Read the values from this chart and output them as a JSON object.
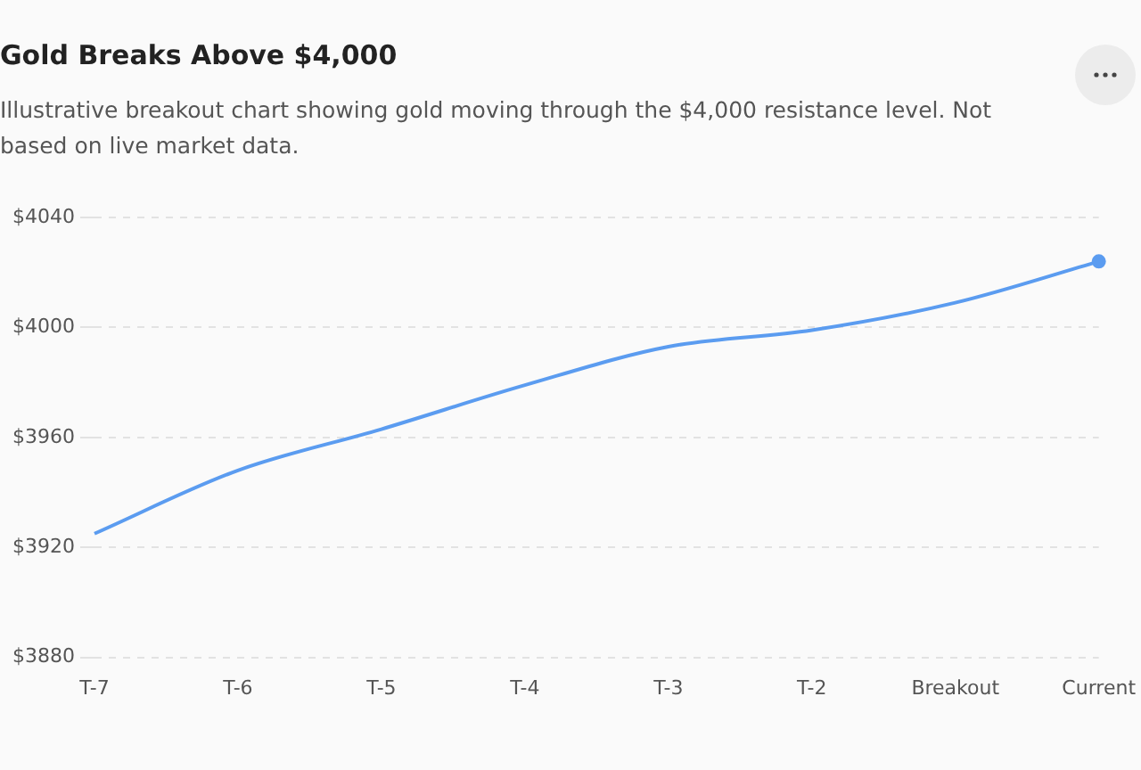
{
  "chart_data": {
    "type": "line",
    "title": "Gold Breaks Above $4,000",
    "subtitle": "Illustrative breakout chart showing gold moving through the $4,000 resistance level. Not based on live market data.",
    "categories": [
      "T-7",
      "T-6",
      "T-5",
      "T-4",
      "T-3",
      "T-2",
      "Breakout",
      "Current"
    ],
    "series": [
      {
        "color": "#5b9cf0",
        "values": [
          3925,
          3948,
          3963,
          3979,
          3993,
          3999,
          4009,
          4024
        ]
      }
    ],
    "ylim": [
      3880,
      4040
    ],
    "yticks": [
      {
        "value": 3880,
        "label": "$3880"
      },
      {
        "value": 3920,
        "label": "$3920"
      },
      {
        "value": 3960,
        "label": "$3960"
      },
      {
        "value": 4000,
        "label": "$4000"
      },
      {
        "value": 4040,
        "label": "$4040"
      }
    ],
    "grid": "y",
    "legend": false,
    "marker": "none",
    "line_style": "solid"
  }
}
